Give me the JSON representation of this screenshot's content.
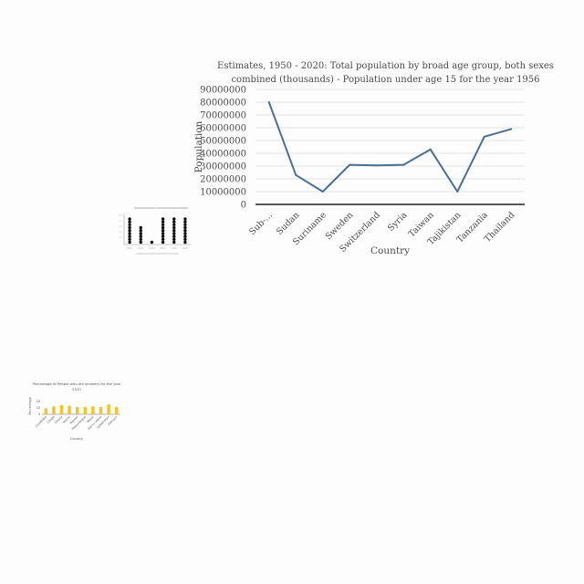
{
  "chart_data": [
    {
      "type": "line",
      "title": "Estimates, 1950 - 2020: Total population by broad age group, both sexes combined (thousands) - Population under age 15 for the year 1956",
      "title_lines": [
        "Estimates, 1950 - 2020: Total population by broad age group, both sexes",
        "combined (thousands) - Population under age 15 for the year 1956"
      ],
      "xlabel": "Country",
      "ylabel": "Population",
      "categories": [
        "Sub-...",
        "Sudan",
        "Suriname",
        "Sweden",
        "Switzerland",
        "Syria",
        "Taiwan",
        "Tajikistan",
        "Tanzania",
        "Thailand"
      ],
      "series": [
        {
          "values": [
            80000000,
            23000000,
            10000000,
            31000000,
            30500000,
            31000000,
            43000000,
            10000000,
            53000000,
            59000000
          ]
        }
      ],
      "ylim": [
        0,
        90000000
      ],
      "yticks": [
        "0",
        "10000000",
        "20000000",
        "30000000",
        "40000000",
        "50000000",
        "60000000",
        "70000000",
        "80000000",
        "90000000"
      ],
      "grid": true,
      "color": "#4a6f96"
    },
    {
      "type": "scatter",
      "title": "",
      "xlabel": "",
      "ylabel": "",
      "categories": [
        "",
        "",
        "",
        "",
        "",
        ""
      ],
      "values": [
        9,
        6,
        1,
        9,
        9,
        9
      ],
      "ylim": [
        0,
        10
      ],
      "grid": false,
      "color": "#111111"
    },
    {
      "type": "bar",
      "title": "Percentage of People who are smokers for the year 2010",
      "title_lines": [
        "Percentage of People who are smokers for the year",
        "2010"
      ],
      "xlabel": "Country",
      "ylabel": "Percentage",
      "categories": [
        "Cambodia",
        "Congo",
        "Ghana",
        "Nauru",
        "Malawi",
        "Mozambique",
        "Nepal",
        "Sierra Leone",
        "Uzbekistan",
        "Vietnam"
      ],
      "values": [
        9,
        12,
        14,
        13,
        11,
        11,
        12,
        11,
        15,
        11
      ],
      "ylim": [
        0,
        25
      ],
      "yticks": [
        "0",
        "10",
        "20"
      ],
      "grid": false,
      "color": "#f5c227"
    }
  ]
}
